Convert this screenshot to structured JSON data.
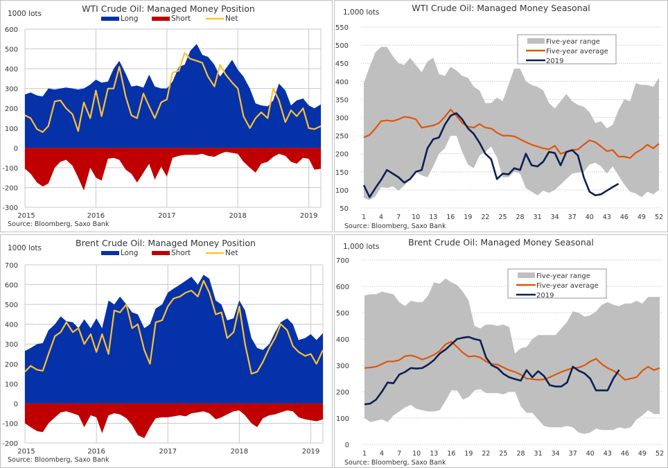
{
  "chart_data": [
    {
      "id": "wti-position",
      "type": "area",
      "title": "WTI Crude Oil: Managed  Money Position",
      "ylabel": "1000 lots",
      "source": "Source: Bloomberg, Saxo Bank",
      "ylim": [
        -300,
        600
      ],
      "yticks": [
        600,
        500,
        400,
        300,
        200,
        100,
        0,
        -100,
        -200,
        -300
      ],
      "xlim": [
        2015.0,
        2019.17
      ],
      "xticks": [
        2015,
        2016,
        2017,
        2018,
        2019
      ],
      "grid": true,
      "legend": "top-center",
      "colors": {
        "long": "#0532A8",
        "short": "#C00000",
        "net": "#FFC033"
      },
      "legend_labels": {
        "long": "Long",
        "short": "Short",
        "net": "Net"
      },
      "x": [
        2015.0,
        2015.08,
        2015.17,
        2015.25,
        2015.33,
        2015.42,
        2015.5,
        2015.58,
        2015.67,
        2015.75,
        2015.83,
        2015.92,
        2016.0,
        2016.08,
        2016.17,
        2016.25,
        2016.33,
        2016.42,
        2016.5,
        2016.58,
        2016.67,
        2016.75,
        2016.83,
        2016.92,
        2017.0,
        2017.08,
        2017.17,
        2017.25,
        2017.33,
        2017.42,
        2017.5,
        2017.58,
        2017.67,
        2017.75,
        2017.83,
        2017.92,
        2018.0,
        2018.08,
        2018.17,
        2018.25,
        2018.33,
        2018.42,
        2018.5,
        2018.58,
        2018.67,
        2018.75,
        2018.83,
        2018.92,
        2019.0,
        2019.08,
        2019.17
      ],
      "series": [
        {
          "name": "Long",
          "values": [
            270,
            280,
            265,
            260,
            300,
            295,
            300,
            305,
            300,
            295,
            300,
            320,
            345,
            330,
            335,
            400,
            440,
            375,
            310,
            315,
            305,
            370,
            310,
            300,
            300,
            335,
            410,
            420,
            490,
            525,
            470,
            460,
            420,
            360,
            400,
            445,
            395,
            360,
            300,
            225,
            215,
            210,
            240,
            325,
            290,
            215,
            240,
            250,
            215,
            200,
            220
          ]
        },
        {
          "name": "Short",
          "values": [
            -105,
            -130,
            -175,
            -195,
            -180,
            -100,
            -70,
            -60,
            -90,
            -150,
            -215,
            -100,
            -150,
            -165,
            -55,
            -50,
            -60,
            -110,
            -130,
            -175,
            -125,
            -80,
            -160,
            -95,
            -145,
            -50,
            -40,
            -35,
            -35,
            -35,
            -30,
            -40,
            -45,
            -30,
            -20,
            -25,
            -30,
            -70,
            -100,
            -125,
            -80,
            -70,
            -45,
            -30,
            -40,
            -70,
            -80,
            -50,
            -55,
            -110,
            -105
          ]
        },
        {
          "name": "Net",
          "values": [
            165,
            150,
            95,
            80,
            110,
            235,
            240,
            200,
            170,
            85,
            230,
            150,
            290,
            160,
            300,
            300,
            410,
            260,
            165,
            150,
            275,
            210,
            150,
            230,
            245,
            380,
            390,
            480,
            450,
            440,
            430,
            360,
            310,
            420,
            370,
            330,
            300,
            160,
            100,
            150,
            180,
            150,
            300,
            240,
            130,
            190,
            160,
            200,
            100,
            95,
            110
          ]
        }
      ]
    },
    {
      "id": "wti-seasonal",
      "type": "area",
      "title": "WTI Crude Oil: Managed  Money Seasonal",
      "ylabel": "1,000 lots",
      "source": "Source: Bloomberg, Saxo Bank",
      "ylim": [
        50,
        550
      ],
      "yticks": [
        550,
        500,
        450,
        400,
        350,
        300,
        250,
        200,
        150,
        100,
        50
      ],
      "xlim": [
        1,
        52
      ],
      "xticks": [
        1,
        4,
        7,
        10,
        13,
        16,
        19,
        22,
        25,
        28,
        31,
        34,
        37,
        40,
        43,
        46,
        49,
        52
      ],
      "grid": true,
      "legend": "top-right",
      "colors": {
        "range": "#BFBFBF",
        "average": "#E0540A",
        "current": "#0D1F52"
      },
      "legend_labels": {
        "range": "Five-year range",
        "average": "Five-year average",
        "current": "2019"
      },
      "range_high": [
        395,
        440,
        480,
        495,
        495,
        470,
        450,
        445,
        465,
        445,
        425,
        455,
        465,
        420,
        415,
        440,
        430,
        415,
        410,
        385,
        375,
        340,
        340,
        355,
        345,
        390,
        435,
        435,
        400,
        390,
        385,
        375,
        340,
        325,
        345,
        365,
        345,
        335,
        330,
        315,
        285,
        290,
        270,
        280,
        320,
        350,
        345,
        395,
        390,
        390,
        385,
        410
      ],
      "range_low": [
        78,
        72,
        82,
        108,
        105,
        110,
        98,
        112,
        130,
        150,
        140,
        135,
        165,
        200,
        215,
        250,
        250,
        205,
        170,
        160,
        195,
        205,
        220,
        190,
        135,
        135,
        150,
        145,
        105,
        95,
        85,
        98,
        92,
        100,
        115,
        130,
        145,
        148,
        150,
        170,
        175,
        165,
        145,
        165,
        140,
        115,
        95,
        90,
        80,
        95,
        88,
        100
      ],
      "average": [
        245,
        252,
        270,
        290,
        292,
        290,
        295,
        302,
        300,
        295,
        272,
        275,
        278,
        285,
        302,
        322,
        305,
        285,
        275,
        272,
        282,
        272,
        270,
        258,
        250,
        250,
        248,
        240,
        232,
        225,
        220,
        215,
        212,
        222,
        200,
        205,
        210,
        212,
        225,
        237,
        232,
        220,
        207,
        210,
        192,
        192,
        188,
        203,
        212,
        225,
        215,
        228
      ],
      "current": [
        113,
        80,
        105,
        128,
        155,
        145,
        135,
        120,
        130,
        150,
        155,
        215,
        240,
        245,
        280,
        305,
        312,
        295,
        270,
        255,
        230,
        200,
        185,
        130,
        145,
        143,
        160,
        155,
        200,
        168,
        165,
        178,
        205,
        202,
        168,
        205,
        210,
        195,
        135,
        95,
        85,
        88,
        98,
        108,
        117
      ]
    },
    {
      "id": "brent-position",
      "type": "area",
      "title": "Brent Crude Oil: Managed  Money Position",
      "ylabel": "1000 lots",
      "source": "Source: Bloomberg, Saxo Bank",
      "ylim": [
        -200,
        700
      ],
      "yticks": [
        700,
        600,
        500,
        400,
        300,
        200,
        100,
        0,
        -100,
        -200
      ],
      "xlim": [
        2015.0,
        2019.17
      ],
      "xticks": [
        2015,
        2016,
        2017,
        2018,
        2019
      ],
      "grid": true,
      "legend": "top-center",
      "colors": {
        "long": "#0532A8",
        "short": "#C00000",
        "net": "#FFC033"
      },
      "legend_labels": {
        "long": "Long",
        "short": "Short",
        "net": "Net"
      },
      "x": [
        2015.0,
        2015.08,
        2015.17,
        2015.25,
        2015.33,
        2015.42,
        2015.5,
        2015.58,
        2015.67,
        2015.75,
        2015.83,
        2015.92,
        2016.0,
        2016.08,
        2016.17,
        2016.25,
        2016.33,
        2016.42,
        2016.5,
        2016.58,
        2016.67,
        2016.75,
        2016.83,
        2016.92,
        2017.0,
        2017.08,
        2017.17,
        2017.25,
        2017.33,
        2017.42,
        2017.5,
        2017.58,
        2017.67,
        2017.75,
        2017.83,
        2017.92,
        2018.0,
        2018.08,
        2018.17,
        2018.25,
        2018.33,
        2018.42,
        2018.5,
        2018.58,
        2018.67,
        2018.75,
        2018.83,
        2018.92,
        2019.0,
        2019.08,
        2019.17
      ],
      "series": [
        {
          "name": "Long",
          "values": [
            265,
            280,
            300,
            305,
            370,
            400,
            440,
            415,
            410,
            380,
            425,
            380,
            430,
            380,
            520,
            500,
            540,
            500,
            460,
            450,
            380,
            400,
            480,
            500,
            560,
            580,
            600,
            620,
            640,
            600,
            650,
            630,
            520,
            500,
            420,
            430,
            520,
            470,
            330,
            280,
            270,
            300,
            360,
            410,
            430,
            400,
            320,
            330,
            350,
            320,
            355
          ]
        },
        {
          "name": "Short",
          "values": [
            -100,
            -120,
            -140,
            -145,
            -100,
            -70,
            -45,
            -40,
            -50,
            -60,
            -120,
            -60,
            -70,
            -150,
            -60,
            -50,
            -55,
            -75,
            -110,
            -160,
            -175,
            -120,
            -75,
            -70,
            -70,
            -65,
            -60,
            -65,
            -50,
            -45,
            -40,
            -50,
            -80,
            -70,
            -55,
            -40,
            -35,
            -60,
            -100,
            -120,
            -75,
            -60,
            -55,
            -45,
            -35,
            -40,
            -70,
            -80,
            -85,
            -90,
            -80
          ]
        },
        {
          "name": "Net",
          "values": [
            160,
            190,
            170,
            165,
            250,
            340,
            360,
            410,
            360,
            380,
            300,
            350,
            260,
            350,
            250,
            470,
            460,
            500,
            380,
            400,
            270,
            200,
            410,
            420,
            490,
            530,
            540,
            560,
            570,
            540,
            620,
            560,
            450,
            460,
            330,
            360,
            490,
            300,
            150,
            160,
            210,
            280,
            330,
            400,
            370,
            290,
            260,
            240,
            250,
            200,
            270
          ]
        }
      ]
    },
    {
      "id": "brent-seasonal",
      "type": "area",
      "title": "Brent Crude Oil: Managed  Money Seasonal",
      "ylabel": "1,000 lots",
      "source": "Source: Bloomberg, Saxo Bank",
      "ylim": [
        0,
        700
      ],
      "yticks": [
        700,
        600,
        500,
        400,
        300,
        200,
        100,
        0
      ],
      "xlim": [
        1,
        52
      ],
      "xticks": [
        1,
        4,
        7,
        10,
        13,
        16,
        19,
        22,
        25,
        28,
        31,
        34,
        37,
        40,
        43,
        46,
        49,
        52
      ],
      "grid": true,
      "legend": "top-right",
      "colors": {
        "range": "#BFBFBF",
        "average": "#E0540A",
        "current": "#0D1F52"
      },
      "legend_labels": {
        "range": "Five-year range",
        "average": "Five-year average",
        "current": "2019"
      },
      "range_high": [
        565,
        570,
        570,
        580,
        575,
        570,
        540,
        525,
        545,
        540,
        540,
        565,
        615,
        610,
        630,
        615,
        605,
        580,
        545,
        450,
        440,
        455,
        455,
        450,
        455,
        445,
        345,
        365,
        370,
        400,
        415,
        415,
        415,
        415,
        440,
        465,
        505,
        500,
        485,
        490,
        505,
        530,
        540,
        530,
        525,
        535,
        535,
        545,
        535,
        560,
        560,
        560
      ],
      "range_low": [
        100,
        85,
        90,
        95,
        85,
        110,
        125,
        140,
        150,
        135,
        130,
        125,
        125,
        130,
        165,
        205,
        205,
        170,
        180,
        205,
        210,
        195,
        195,
        195,
        190,
        200,
        200,
        145,
        120,
        120,
        95,
        70,
        65,
        65,
        65,
        70,
        65,
        45,
        40,
        45,
        60,
        55,
        55,
        55,
        65,
        60,
        65,
        95,
        110,
        130,
        115,
        115
      ],
      "average": [
        290,
        292,
        295,
        305,
        315,
        315,
        320,
        335,
        338,
        332,
        322,
        330,
        340,
        355,
        380,
        390,
        370,
        348,
        333,
        336,
        330,
        315,
        305,
        303,
        292,
        282,
        275,
        265,
        250,
        248,
        245,
        247,
        255,
        265,
        275,
        283,
        290,
        292,
        300,
        315,
        325,
        305,
        290,
        280,
        265,
        245,
        250,
        255,
        280,
        295,
        282,
        290
      ],
      "current": [
        152,
        155,
        170,
        200,
        235,
        232,
        265,
        275,
        290,
        288,
        290,
        303,
        320,
        345,
        360,
        380,
        400,
        405,
        408,
        400,
        395,
        330,
        300,
        290,
        268,
        255,
        248,
        242,
        282,
        255,
        278,
        260,
        225,
        220,
        220,
        235,
        295,
        280,
        270,
        250,
        205,
        205,
        205,
        250,
        283
      ]
    }
  ]
}
